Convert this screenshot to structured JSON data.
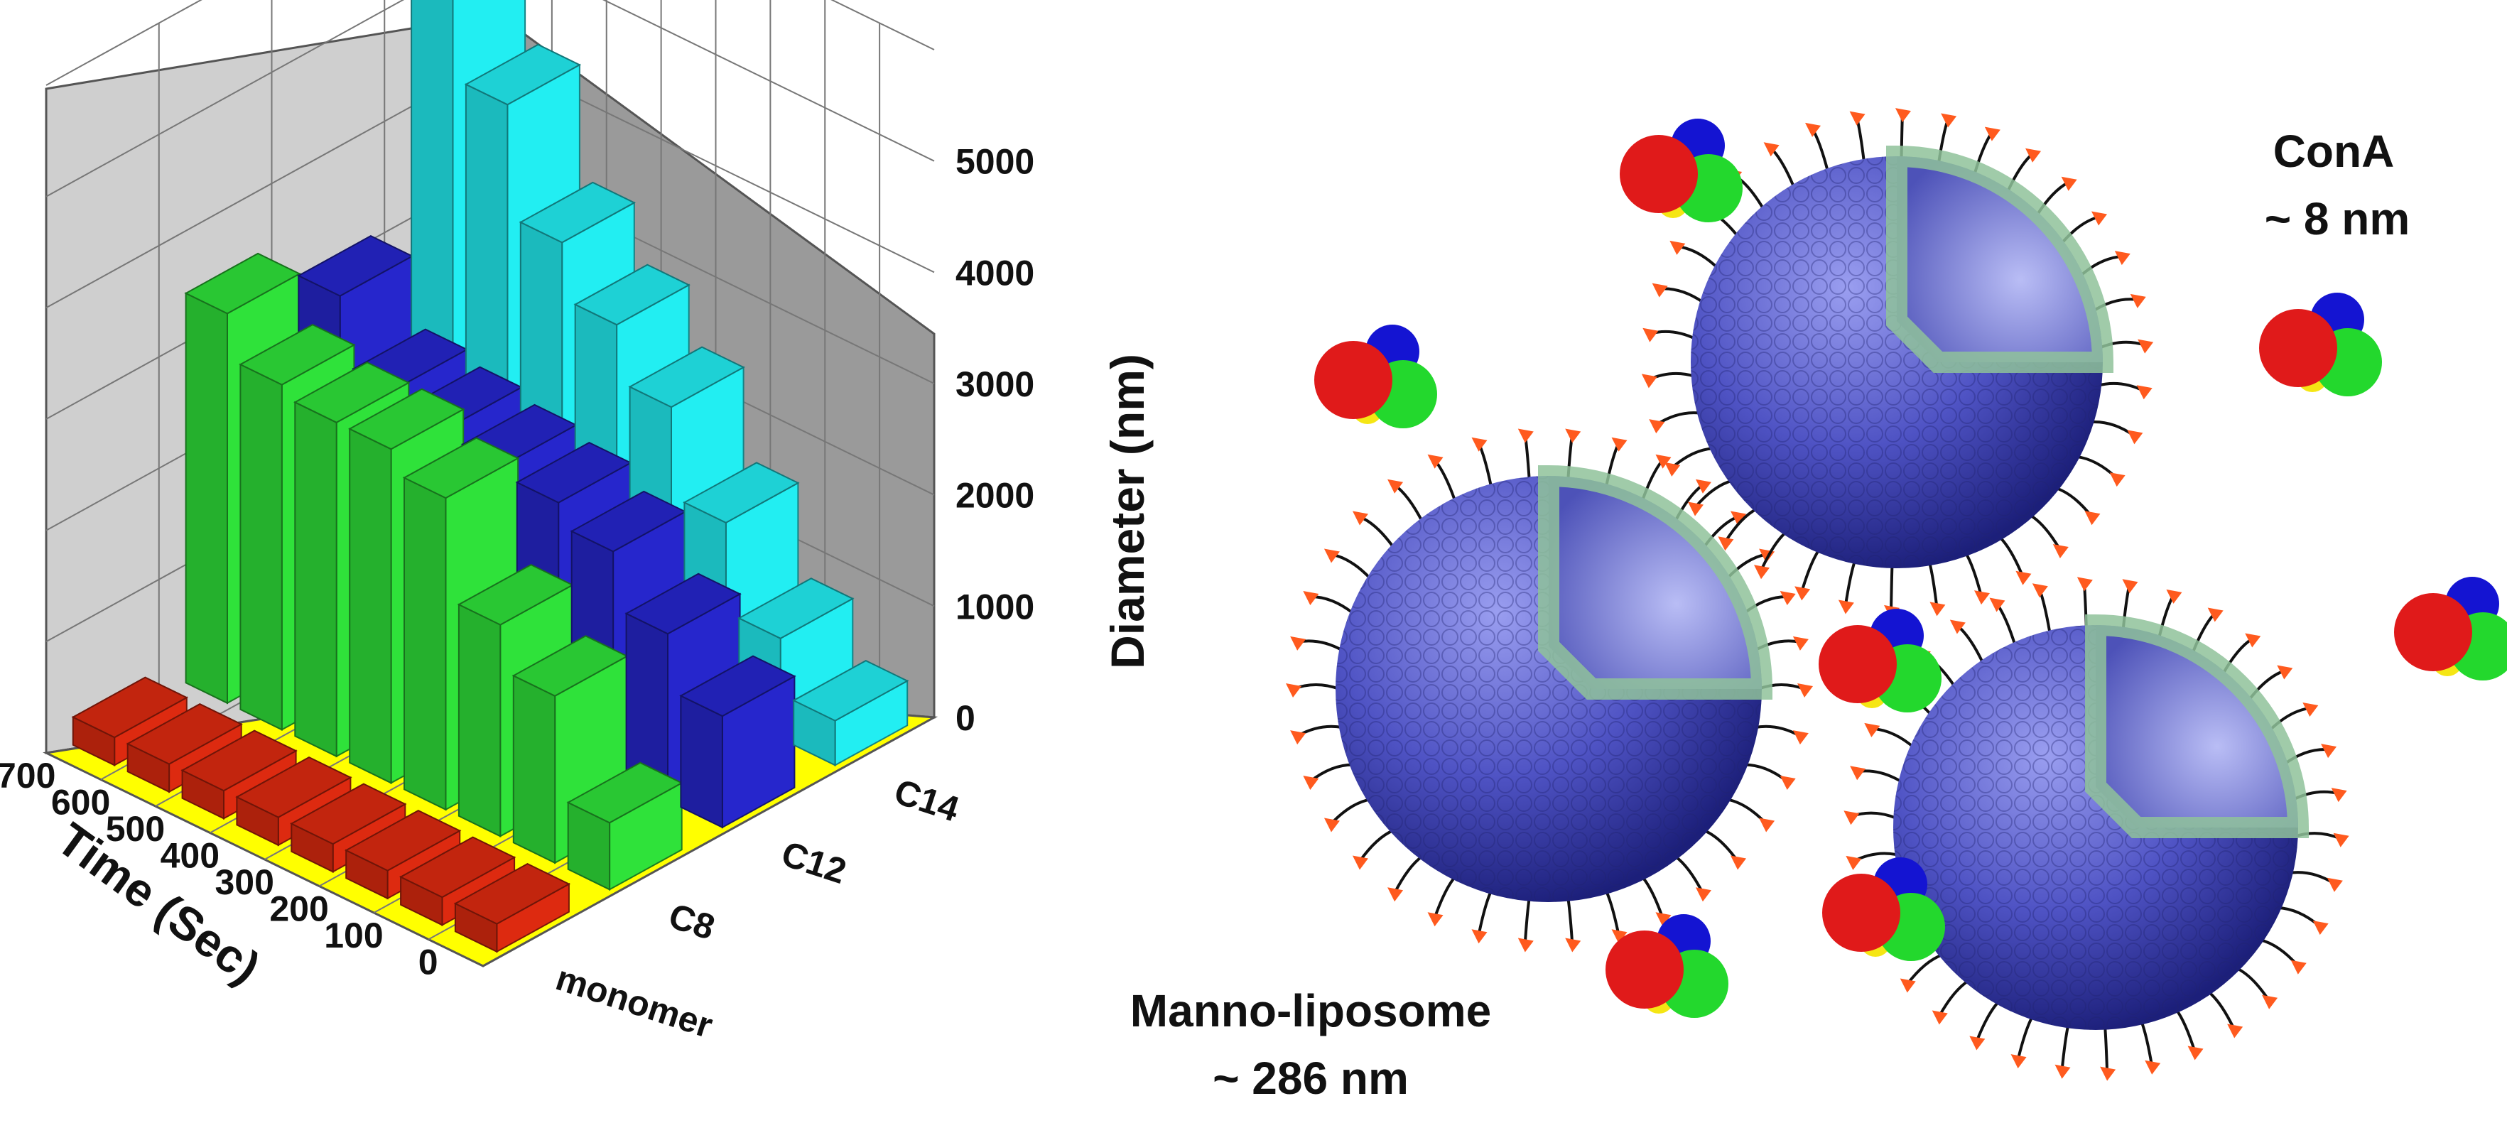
{
  "chart_data": {
    "type": "bar",
    "subtype": "3d-bar",
    "title": "",
    "xlabel": "Time (Sec)",
    "ylabel": "",
    "zlabel": "Diameter (nm)",
    "x": [
      0,
      100,
      200,
      300,
      400,
      500,
      600,
      700
    ],
    "x_ticks": [
      "0",
      "100",
      "200",
      "300",
      "400",
      "500",
      "600",
      "700"
    ],
    "y_ticks": [
      "monomer",
      "C8",
      "C12",
      "C14"
    ],
    "z_ticks": [
      "0",
      "1000",
      "2000",
      "3000",
      "4000",
      "5000"
    ],
    "zlim": [
      0,
      6000
    ],
    "grid": true,
    "series": [
      {
        "name": "monomer",
        "color": "#dd2a10",
        "values": [
          250,
          250,
          250,
          250,
          250,
          250,
          250,
          250
        ]
      },
      {
        "name": "C8",
        "color": "#2fe23a",
        "values": [
          600,
          1500,
          1900,
          2800,
          3000,
          3000,
          3100,
          3500
        ]
      },
      {
        "name": "C12",
        "color": "#2626cc",
        "values": [
          1000,
          1500,
          2000,
          2200,
          2300,
          2400,
          2500,
          3100
        ]
      },
      {
        "name": "C14",
        "color": "#22eef2",
        "values": [
          400,
          900,
          1700,
          2500,
          3000,
          3500,
          4500,
          6000
        ]
      }
    ],
    "floor_color": "#ffff00",
    "wall_color": "#c8c8c8"
  },
  "annotations": {
    "cona_line1": "ConA",
    "cona_line2": "~ 8 nm",
    "lipo_line1": "Manno-liposome",
    "lipo_line2": "~ 286 nm"
  }
}
